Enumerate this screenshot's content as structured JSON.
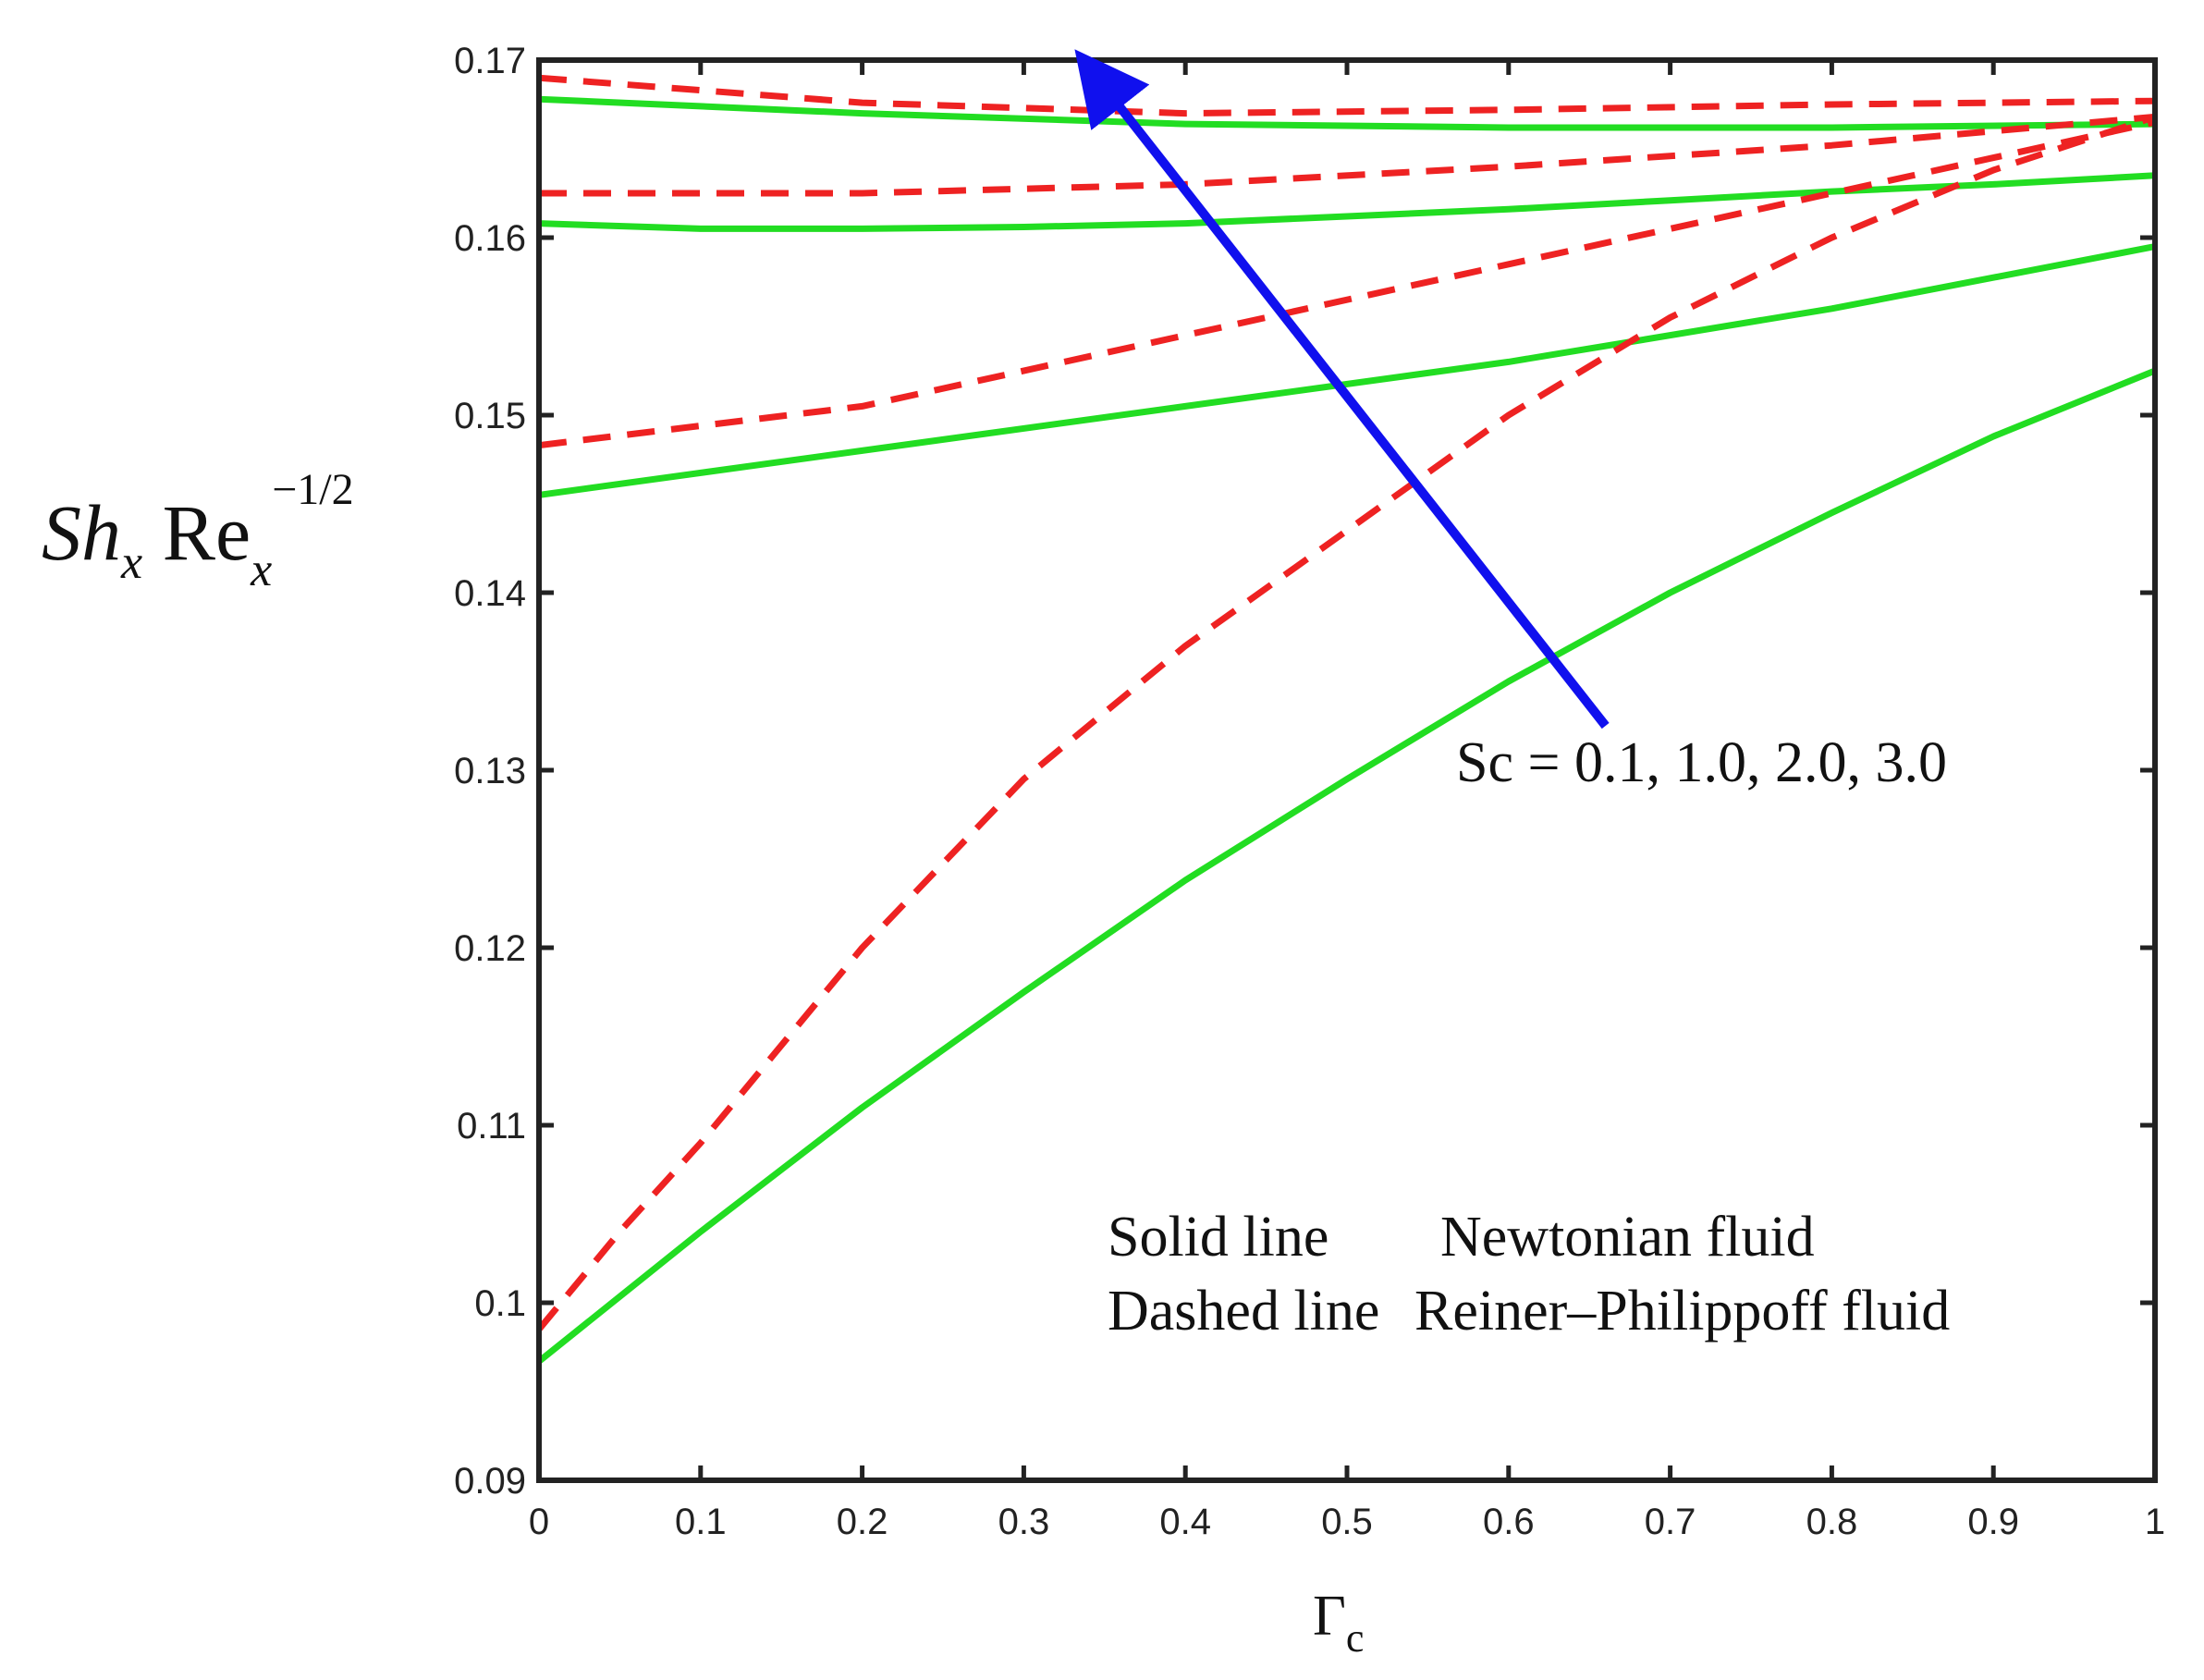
{
  "chart_data": {
    "type": "line",
    "xlabel": {
      "main": "Γ",
      "sub": "c"
    },
    "ylabel": {
      "main_italic": "Sh",
      "sub_italic": "x",
      "main": " Re",
      "sub2_italic": "x",
      "sup": "−1/2"
    },
    "xlim": [
      0,
      1
    ],
    "ylim": [
      0.09,
      0.17
    ],
    "xticks": [
      0,
      0.1,
      0.2,
      0.3,
      0.4,
      0.5,
      0.6,
      0.7,
      0.8,
      0.9,
      1
    ],
    "xtick_labels": [
      "0",
      "0.1",
      "0.2",
      "0.3",
      "0.4",
      "0.5",
      "0.6",
      "0.7",
      "0.8",
      "0.9",
      "1"
    ],
    "yticks": [
      0.09,
      0.1,
      0.11,
      0.12,
      0.13,
      0.14,
      0.15,
      0.16,
      0.17
    ],
    "ytick_labels": [
      "0.09",
      "0.1",
      "0.11",
      "0.12",
      "0.13",
      "0.14",
      "0.15",
      "0.16",
      "0.17"
    ],
    "grid": false,
    "colors": {
      "solid": "#22dd22",
      "dashed": "#ee2222",
      "arrow": "#1010ee",
      "axis": "#222222"
    },
    "annotation": {
      "text": "Sc =  0.1, 1.0, 2.0, 3.0",
      "arrow_from": [
        0.66,
        0.1325
      ],
      "arrow_to": [
        0.335,
        0.1702
      ]
    },
    "legend": {
      "placement": "bottom-right",
      "rows": [
        {
          "style": "Solid line",
          "label": "Newtonian fluid"
        },
        {
          "style": "Dashed line",
          "label": "Reiner–Philippoff fluid"
        }
      ]
    },
    "series": [
      {
        "style": "solid",
        "x": [
          0,
          0.1,
          0.2,
          0.3,
          0.4,
          0.5,
          0.6,
          0.7,
          0.8,
          0.9,
          1
        ],
        "y": [
          0.0967,
          0.104,
          0.111,
          0.1175,
          0.1238,
          0.1295,
          0.135,
          0.14,
          0.1445,
          0.1488,
          0.1525
        ]
      },
      {
        "style": "solid",
        "x": [
          0,
          0.2,
          0.4,
          0.6,
          0.8,
          1
        ],
        "y": [
          0.1455,
          0.148,
          0.1505,
          0.153,
          0.156,
          0.1595
        ]
      },
      {
        "style": "solid",
        "x": [
          0,
          0.1,
          0.2,
          0.3,
          0.4,
          0.5,
          0.6,
          0.7,
          0.8,
          0.9,
          1
        ],
        "y": [
          0.1608,
          0.1605,
          0.1605,
          0.1606,
          0.1608,
          0.1612,
          0.1616,
          0.1621,
          0.1626,
          0.163,
          0.1635
        ]
      },
      {
        "style": "solid",
        "x": [
          0,
          0.2,
          0.4,
          0.6,
          0.8,
          1
        ],
        "y": [
          0.1678,
          0.167,
          0.1664,
          0.1662,
          0.1662,
          0.1664
        ]
      },
      {
        "style": "dashed",
        "x": [
          0,
          0.05,
          0.1,
          0.2,
          0.3,
          0.4,
          0.5,
          0.6,
          0.7,
          0.8,
          0.9,
          1
        ],
        "y": [
          0.0985,
          0.104,
          0.109,
          0.12,
          0.1295,
          0.137,
          0.1435,
          0.15,
          0.1555,
          0.16,
          0.1638,
          0.1668
        ]
      },
      {
        "style": "dashed",
        "x": [
          0,
          0.2,
          0.4,
          0.6,
          0.8,
          1
        ],
        "y": [
          0.1483,
          0.1505,
          0.1545,
          0.1585,
          0.1625,
          0.1665
        ]
      },
      {
        "style": "dashed",
        "x": [
          0,
          0.2,
          0.4,
          0.6,
          0.8,
          1
        ],
        "y": [
          0.1625,
          0.1625,
          0.163,
          0.164,
          0.1652,
          0.1668
        ]
      },
      {
        "style": "dashed",
        "x": [
          0,
          0.2,
          0.4,
          0.6,
          0.8,
          1
        ],
        "y": [
          0.169,
          0.1676,
          0.167,
          0.1672,
          0.1675,
          0.1677
        ]
      }
    ]
  }
}
